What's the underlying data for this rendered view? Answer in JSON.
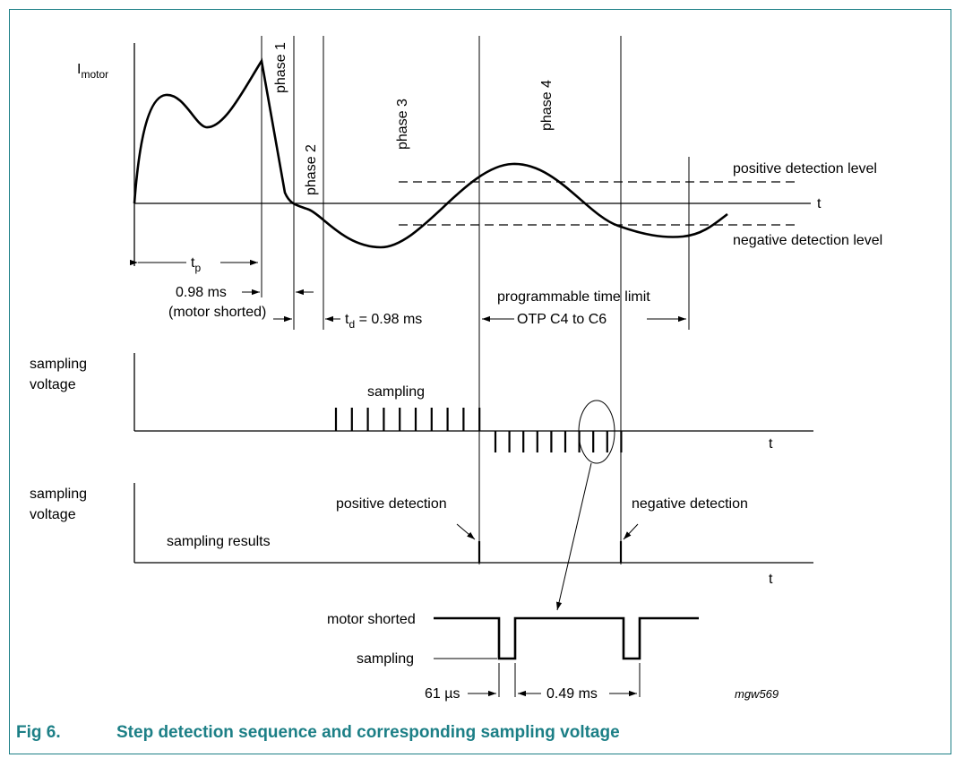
{
  "caption": {
    "number": "Fig 6.",
    "title": "Step detection sequence and corresponding sampling voltage"
  },
  "diagram": {
    "current_label_main": "I",
    "current_label_sub": "motor",
    "time_axis": "t",
    "phases": [
      "phase 1",
      "phase 2",
      "phase 3",
      "phase 4"
    ],
    "positive_level": "positive detection level",
    "negative_level": "negative detection level",
    "tp_main": "t",
    "tp_sub": "p",
    "shorted_time": "0.98 ms",
    "shorted_note": "(motor shorted)",
    "td_main": "t",
    "td_sub": "d",
    "td_value": " = 0.98 ms",
    "time_limit_line1": "programmable time limit",
    "time_limit_line2": "OTP C4 to C6",
    "sampling_voltage_line1": "sampling",
    "sampling_voltage_line2": "voltage",
    "sampling": "sampling",
    "positive_detection": "positive detection",
    "negative_detection": "negative detection",
    "sampling_results": "sampling results",
    "motor_shorted": "motor shorted",
    "sampling_state": "sampling",
    "pulse_width": "61 µs",
    "pulse_period": "0.49 ms",
    "figure_code": "mgw569"
  },
  "colors": {
    "accent": "#1c7f86",
    "ink": "#000000"
  }
}
